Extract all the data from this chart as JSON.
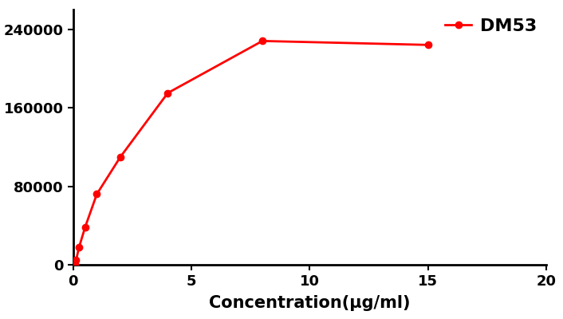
{
  "x": [
    0,
    0.031,
    0.063,
    0.125,
    0.25,
    0.5,
    1,
    2,
    4,
    8,
    15
  ],
  "y": [
    0,
    300,
    800,
    5000,
    18000,
    38000,
    72000,
    110000,
    175000,
    228000,
    224000
  ],
  "line_color": "#FF0000",
  "marker": "o",
  "marker_size": 6,
  "line_width": 2.0,
  "label": "DM53",
  "xlabel": "Concentration(μg/ml)",
  "xlim": [
    0,
    20
  ],
  "ylim": [
    0,
    260000
  ],
  "yticks": [
    0,
    80000,
    160000,
    240000
  ],
  "xticks": [
    0,
    5,
    10,
    15,
    20
  ],
  "background_color": "#ffffff",
  "legend_fontsize": 16,
  "axis_label_fontsize": 15,
  "tick_fontsize": 13
}
